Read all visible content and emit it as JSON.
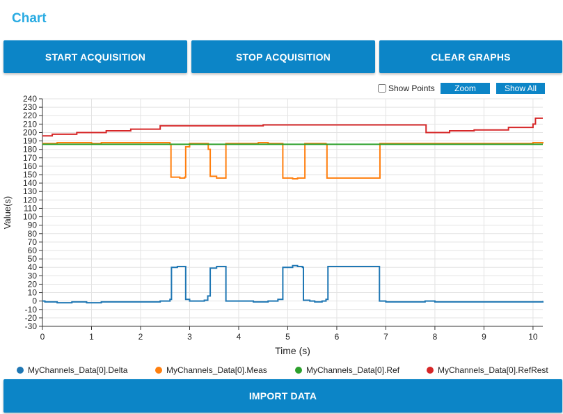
{
  "title": "Chart",
  "buttons": {
    "start": "START ACQUISITION",
    "stop": "STOP ACQUISITION",
    "clear": "CLEAR GRAPHS",
    "import": "IMPORT DATA",
    "zoom": "Zoom",
    "show_all": "Show All"
  },
  "show_points_label": "Show Points",
  "colors": {
    "accent": "#0c85c7",
    "title": "#29abe2"
  },
  "chart_data": {
    "type": "line",
    "xlabel": "Time (s)",
    "ylabel": "Value(s)",
    "xlim": [
      0,
      10.2
    ],
    "ylim": [
      -30,
      240
    ],
    "xticks": [
      0,
      1,
      2,
      3,
      4,
      5,
      6,
      7,
      8,
      9,
      10
    ],
    "yticks": [
      -30,
      -20,
      -10,
      0,
      10,
      20,
      30,
      40,
      50,
      60,
      70,
      80,
      90,
      100,
      110,
      120,
      130,
      140,
      150,
      160,
      170,
      180,
      190,
      200,
      210,
      220,
      230,
      240
    ],
    "grid": true,
    "series": [
      {
        "name": "MyChannels_Data[0].Delta",
        "color": "#1f77b4",
        "points": [
          [
            0,
            0
          ],
          [
            0.05,
            -1
          ],
          [
            0.3,
            -2
          ],
          [
            0.6,
            -1
          ],
          [
            0.9,
            -2
          ],
          [
            1.2,
            -1
          ],
          [
            2.4,
            0
          ],
          [
            2.6,
            2
          ],
          [
            2.63,
            40
          ],
          [
            2.75,
            41
          ],
          [
            2.9,
            41
          ],
          [
            2.92,
            2
          ],
          [
            3.0,
            0
          ],
          [
            3.3,
            1
          ],
          [
            3.37,
            6
          ],
          [
            3.42,
            39
          ],
          [
            3.55,
            41
          ],
          [
            3.72,
            41
          ],
          [
            3.74,
            0
          ],
          [
            4.3,
            -1
          ],
          [
            4.45,
            -1
          ],
          [
            4.6,
            0
          ],
          [
            4.8,
            2
          ],
          [
            4.9,
            40
          ],
          [
            5.1,
            42
          ],
          [
            5.2,
            41
          ],
          [
            5.3,
            40
          ],
          [
            5.32,
            1
          ],
          [
            5.45,
            0
          ],
          [
            5.55,
            -1
          ],
          [
            5.7,
            0
          ],
          [
            5.78,
            2
          ],
          [
            5.82,
            41
          ],
          [
            6.5,
            41
          ],
          [
            6.7,
            41
          ],
          [
            6.85,
            41
          ],
          [
            6.87,
            0
          ],
          [
            7.0,
            -1
          ],
          [
            7.8,
            0
          ],
          [
            8.0,
            -1
          ],
          [
            9.8,
            -1
          ],
          [
            10.0,
            -1
          ],
          [
            10.2,
            0
          ]
        ]
      },
      {
        "name": "MyChannels_Data[0].Meas",
        "color": "#ff7f0e",
        "points": [
          [
            0,
            187
          ],
          [
            0.3,
            188
          ],
          [
            0.6,
            188
          ],
          [
            1.0,
            187
          ],
          [
            1.2,
            188
          ],
          [
            2.6,
            186
          ],
          [
            2.62,
            147
          ],
          [
            2.8,
            146
          ],
          [
            2.9,
            147
          ],
          [
            2.92,
            183
          ],
          [
            3.0,
            187
          ],
          [
            3.3,
            187
          ],
          [
            3.38,
            180
          ],
          [
            3.42,
            148
          ],
          [
            3.55,
            146
          ],
          [
            3.72,
            146
          ],
          [
            3.74,
            187
          ],
          [
            4.3,
            187
          ],
          [
            4.4,
            188
          ],
          [
            4.6,
            187
          ],
          [
            4.88,
            187
          ],
          [
            4.9,
            146
          ],
          [
            5.1,
            145
          ],
          [
            5.2,
            146
          ],
          [
            5.33,
            146
          ],
          [
            5.35,
            187
          ],
          [
            5.45,
            187
          ],
          [
            5.6,
            187
          ],
          [
            5.78,
            186
          ],
          [
            5.8,
            146
          ],
          [
            6.0,
            146
          ],
          [
            6.86,
            146
          ],
          [
            6.88,
            187
          ],
          [
            8.0,
            187
          ],
          [
            10.0,
            188
          ],
          [
            10.2,
            187
          ]
        ]
      },
      {
        "name": "MyChannels_Data[0].Ref",
        "color": "#2ca02c",
        "points": [
          [
            0,
            186
          ],
          [
            10.2,
            186
          ]
        ]
      },
      {
        "name": "MyChannels_Data[0].RefRest",
        "color": "#d62728",
        "points": [
          [
            0,
            196
          ],
          [
            0.2,
            198
          ],
          [
            0.7,
            200
          ],
          [
            1.3,
            202
          ],
          [
            1.8,
            204
          ],
          [
            2.4,
            208
          ],
          [
            4.5,
            209
          ],
          [
            7.8,
            209
          ],
          [
            7.82,
            200
          ],
          [
            8.3,
            202
          ],
          [
            8.8,
            203
          ],
          [
            9.5,
            206
          ],
          [
            10.0,
            210
          ],
          [
            10.05,
            217
          ],
          [
            10.2,
            217
          ]
        ]
      }
    ]
  }
}
